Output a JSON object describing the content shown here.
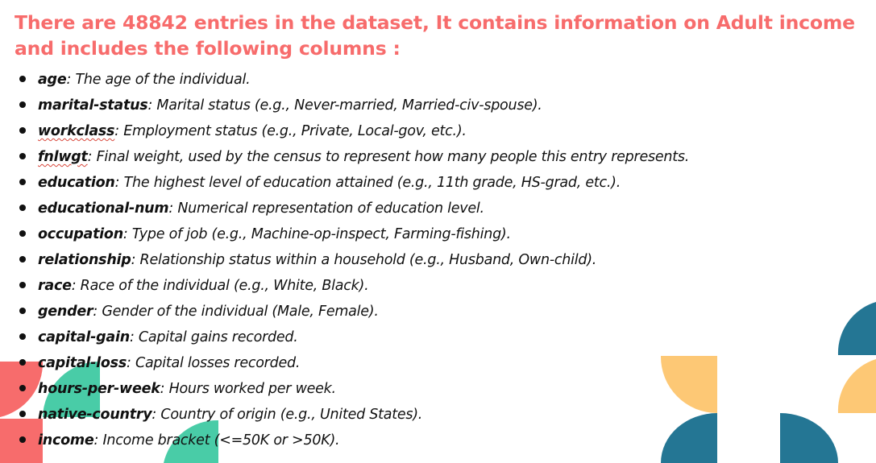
{
  "heading": "There are 48842 entries in the dataset, It contains information on Adult income and includes the following columns :",
  "columns": [
    {
      "name": "age",
      "sep": ":",
      "desc": " The age of the individual."
    },
    {
      "name": "marital-status",
      "sep": ":",
      "desc": " Marital status (e.g., Never-married, Married-civ-spouse)."
    },
    {
      "name": "workclass",
      "sep": ":",
      "desc": " Employment status (e.g., Private, Local-gov, etc.)."
    },
    {
      "name": "fnlwgt",
      "sep": ":",
      "desc": " Final weight, used by the census to represent how many people this entry represents."
    },
    {
      "name": "education",
      "sep": ":",
      "desc": " The highest level of education attained (e.g., 11th grade, HS-grad, etc.)."
    },
    {
      "name": "educational-num",
      "sep": ":",
      "desc": " Numerical representation of education level."
    },
    {
      "name": "occupation",
      "sep": ":",
      "desc": " Type of job (e.g., Machine-op-inspect, Farming-fishing)."
    },
    {
      "name": "relationship",
      "sep": ":",
      "desc": " Relationship status within a household (e.g., Husband, Own-child)."
    },
    {
      "name": "race",
      "sep": ":",
      "desc": " Race of the individual (e.g., White, Black)."
    },
    {
      "name": "gender",
      "sep": ":",
      "desc": " Gender of the individual (Male, Female)."
    },
    {
      "name": "capital-gain",
      "sep": ":",
      "desc": " Capital gains recorded."
    },
    {
      "name": "capital-loss",
      "sep": ":",
      "desc": " Capital losses recorded."
    },
    {
      "name": "hours-per-week",
      "sep": ":",
      "desc": " Hours worked per week."
    },
    {
      "name": "native-country",
      "sep": ":",
      "desc": " Country of origin (e.g., United States)."
    },
    {
      "name": "income",
      "sep": ":",
      "desc": " Income bracket (<=50K or >50K)."
    }
  ],
  "colors": {
    "heading": "#f76c6c",
    "coral": "#f76c6c",
    "teal": "#49cca7",
    "blue": "#247694",
    "yellow": "#fdc875"
  }
}
